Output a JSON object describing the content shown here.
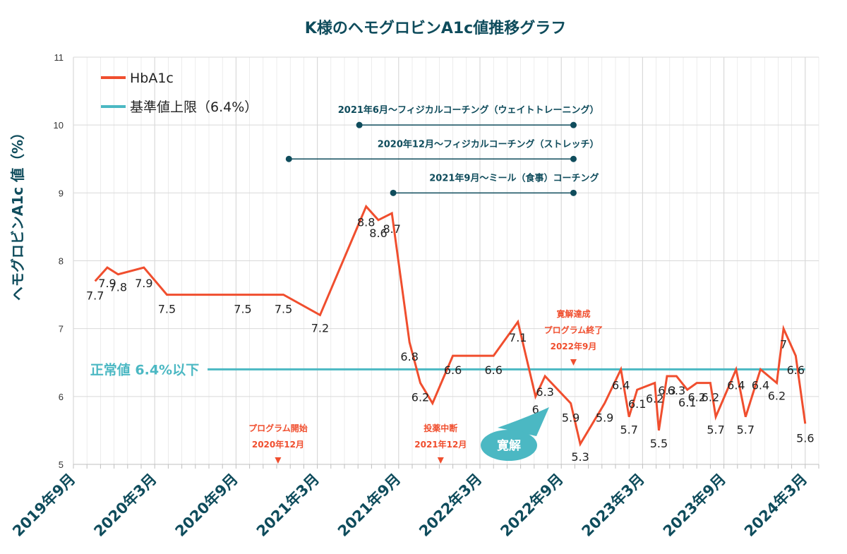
{
  "colors": {
    "series": "#f04e2e",
    "threshold": "#4bb8c3",
    "dark": "#0f4c5c",
    "grid": "#d9d9d9"
  },
  "chart_data": {
    "type": "line",
    "title": "K様のヘモグロビンA1c値推移グラフ",
    "ylabel": "ヘモグロビンA1c 値（%）",
    "ylim": [
      5,
      11
    ],
    "yticks": [
      "5",
      "6",
      "7",
      "8",
      "9",
      "10",
      "11"
    ],
    "xlim": [
      0,
      55
    ],
    "xtick_positions": [
      0,
      6,
      12,
      18,
      24,
      30,
      36,
      42,
      48,
      54
    ],
    "xtick_labels": [
      "2019年9月",
      "2020年3月",
      "2020年9月",
      "2021年3月",
      "2021年9月",
      "2022年3月",
      "2022年9月",
      "2023年3月",
      "2023年9月",
      "2024年3月"
    ],
    "series": [
      {
        "name": "HbA1c",
        "points": [
          {
            "x": 1.6,
            "y": 7.7,
            "label": "7.7"
          },
          {
            "x": 2.5,
            "y": 7.9,
            "label": "7.9"
          },
          {
            "x": 3.3,
            "y": 7.8,
            "label": "7.8"
          },
          {
            "x": 5.2,
            "y": 7.9,
            "label": "7.9"
          },
          {
            "x": 6.9,
            "y": 7.5,
            "label": "7.5"
          },
          {
            "x": 12.5,
            "y": 7.5,
            "label": "7.5"
          },
          {
            "x": 15.5,
            "y": 7.5,
            "label": "7.5"
          },
          {
            "x": 18.2,
            "y": 7.2,
            "label": "7.2"
          },
          {
            "x": 21.6,
            "y": 8.8,
            "label": "8.8"
          },
          {
            "x": 22.5,
            "y": 8.6,
            "label": "8.6"
          },
          {
            "x": 23.5,
            "y": 8.7,
            "label": "8.7"
          },
          {
            "x": 24.8,
            "y": 6.8,
            "label": "6.8"
          },
          {
            "x": 25.6,
            "y": 6.2,
            "label": "6.2"
          },
          {
            "x": 26.5,
            "y": 5.9,
            "label": ""
          },
          {
            "x": 28.0,
            "y": 6.6,
            "label": "6.6"
          },
          {
            "x": 31.0,
            "y": 6.6,
            "label": "6.6"
          },
          {
            "x": 32.8,
            "y": 7.1,
            "label": "7.1"
          },
          {
            "x": 34.1,
            "y": 6.0,
            "label": "6"
          },
          {
            "x": 34.8,
            "y": 6.3,
            "label": "6.3"
          },
          {
            "x": 36.7,
            "y": 5.9,
            "label": "5.9"
          },
          {
            "x": 37.4,
            "y": 5.3,
            "label": "5.3"
          },
          {
            "x": 39.2,
            "y": 5.9,
            "label": "5.9"
          },
          {
            "x": 40.4,
            "y": 6.4,
            "label": "6.4"
          },
          {
            "x": 41.0,
            "y": 5.7,
            "label": "5.7"
          },
          {
            "x": 41.6,
            "y": 6.1,
            "label": "6.1"
          },
          {
            "x": 42.9,
            "y": 6.2,
            "label": "6.2"
          },
          {
            "x": 43.2,
            "y": 5.5,
            "label": "5.5"
          },
          {
            "x": 43.8,
            "y": 6.3,
            "label": "6.3"
          },
          {
            "x": 44.5,
            "y": 6.3,
            "label": "6.3"
          },
          {
            "x": 45.3,
            "y": 6.1,
            "label": "6.1"
          },
          {
            "x": 46.0,
            "y": 6.2,
            "label": "6.2"
          },
          {
            "x": 47.0,
            "y": 6.2,
            "label": "6.2"
          },
          {
            "x": 47.4,
            "y": 5.7,
            "label": "5.7"
          },
          {
            "x": 48.9,
            "y": 6.4,
            "label": "6.4"
          },
          {
            "x": 49.6,
            "y": 5.7,
            "label": "5.7"
          },
          {
            "x": 50.7,
            "y": 6.4,
            "label": "6.4"
          },
          {
            "x": 51.9,
            "y": 6.2,
            "label": "6.2"
          },
          {
            "x": 52.4,
            "y": 7.0,
            "label": "7"
          },
          {
            "x": 53.3,
            "y": 6.6,
            "label": "6.6"
          },
          {
            "x": 54.0,
            "y": 5.6,
            "label": "5.6"
          }
        ]
      }
    ],
    "threshold": {
      "name": "基準値上限（6.4%）",
      "value": 6.4,
      "x_start": 9.9,
      "x_end": 54.0,
      "label": "正常値 6.4%以下"
    },
    "legend": [
      "HbA1c",
      "基準値上限（6.4%）"
    ],
    "intervals": [
      {
        "label": "2021年6月〜フィジカルコーチング（ウェイトトレーニング）",
        "x_start": 21.1,
        "x_end": 36.9,
        "y": 10.0
      },
      {
        "label": "2020年12月〜フィジカルコーチング（ストレッチ）",
        "x_start": 15.9,
        "x_end": 36.9,
        "y": 9.5
      },
      {
        "label": "2021年9月〜ミール（食事）コーチング",
        "x_start": 23.6,
        "x_end": 36.9,
        "y": 9.0
      }
    ],
    "events": [
      {
        "lines": [
          "プログラム開始",
          "2020年12月"
        ],
        "x": 15.1
      },
      {
        "lines": [
          "投薬中断",
          "2021年12月"
        ],
        "x": 27.1
      },
      {
        "lines": [
          "寛解達成",
          "プログラム終了",
          "2022年9月"
        ],
        "x": 36.9
      }
    ],
    "callout": "寛解"
  }
}
